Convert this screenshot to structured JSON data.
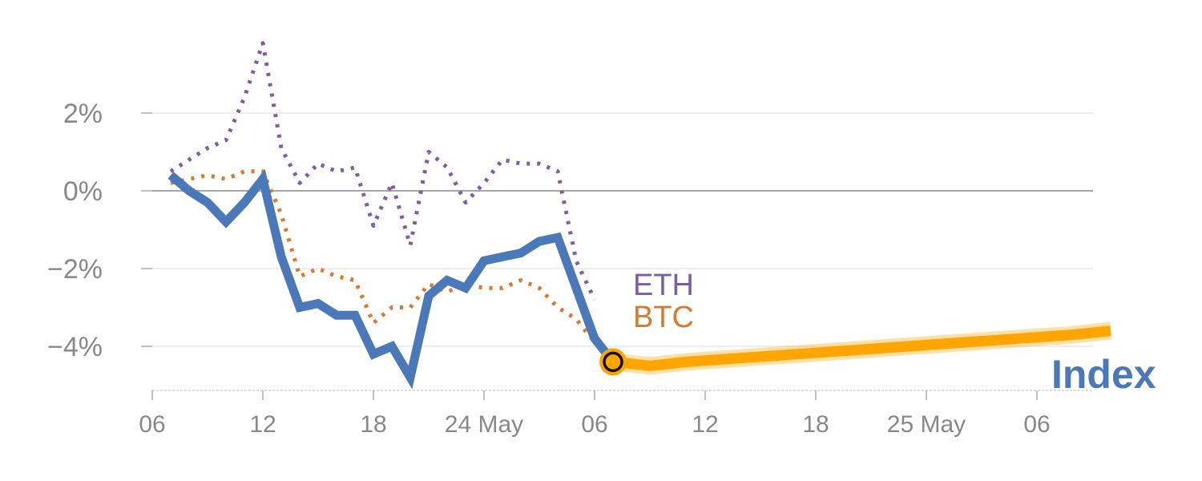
{
  "chart_data": {
    "type": "line",
    "x_axis": {
      "ticks": [
        {
          "label": "06",
          "day": 0
        },
        {
          "label": "12",
          "day": 6
        },
        {
          "label": "18",
          "day": 12
        },
        {
          "label": "24 May",
          "day": 18
        },
        {
          "label": "06",
          "day": 24
        },
        {
          "label": "12",
          "day": 30
        },
        {
          "label": "18",
          "day": 36
        },
        {
          "label": "25 May",
          "day": 42
        },
        {
          "label": "06",
          "day": 48
        }
      ]
    },
    "y_axis": {
      "unit": "%",
      "ylim": [
        -5.2,
        4.2
      ],
      "ticks": [
        {
          "label": "2%",
          "value": 2
        },
        {
          "label": "0%",
          "value": 0
        },
        {
          "label": "−2%",
          "value": -2
        },
        {
          "label": "−4%",
          "value": -4
        }
      ],
      "zero_line": true,
      "grid": true
    },
    "series": [
      {
        "name": "ETH",
        "style": "dotted",
        "color": "#7b5ea7",
        "points": [
          [
            1,
            0.5
          ],
          [
            2,
            0.8
          ],
          [
            3,
            1.1
          ],
          [
            4,
            1.3
          ],
          [
            5,
            2.4
          ],
          [
            6,
            3.8
          ],
          [
            7,
            1.1
          ],
          [
            8,
            0.2
          ],
          [
            9,
            0.7
          ],
          [
            10,
            0.5
          ],
          [
            11,
            0.6
          ],
          [
            12,
            -0.9
          ],
          [
            13,
            0.2
          ],
          [
            14,
            -1.4
          ],
          [
            15,
            1.0
          ],
          [
            16,
            0.6
          ],
          [
            17,
            -0.3
          ],
          [
            18,
            0.2
          ],
          [
            19,
            0.8
          ],
          [
            20,
            0.7
          ],
          [
            21,
            0.7
          ],
          [
            22,
            0.5
          ],
          [
            23,
            -1.8
          ],
          [
            24,
            -2.8
          ]
        ]
      },
      {
        "name": "BTC",
        "style": "dotted",
        "color": "#d9792e",
        "points": [
          [
            1,
            0.2
          ],
          [
            2,
            0.3
          ],
          [
            3,
            0.4
          ],
          [
            4,
            0.3
          ],
          [
            5,
            0.5
          ],
          [
            6,
            0.5
          ],
          [
            7,
            -0.6
          ],
          [
            8,
            -2.2
          ],
          [
            9,
            -2.0
          ],
          [
            10,
            -2.2
          ],
          [
            11,
            -2.3
          ],
          [
            12,
            -3.4
          ],
          [
            13,
            -3.0
          ],
          [
            14,
            -3.0
          ],
          [
            15,
            -2.4
          ],
          [
            16,
            -2.6
          ],
          [
            17,
            -2.4
          ],
          [
            18,
            -2.5
          ],
          [
            19,
            -2.5
          ],
          [
            20,
            -2.3
          ],
          [
            21,
            -2.5
          ],
          [
            22,
            -3.0
          ],
          [
            23,
            -3.3
          ],
          [
            24,
            -3.9
          ]
        ]
      },
      {
        "name": "Index",
        "style": "solid",
        "color": "#4a78b8",
        "points": [
          [
            1,
            0.4
          ],
          [
            2,
            0.0
          ],
          [
            3,
            -0.3
          ],
          [
            4,
            -0.8
          ],
          [
            5,
            -0.3
          ],
          [
            6,
            0.3
          ],
          [
            7,
            -1.7
          ],
          [
            8,
            -3.0
          ],
          [
            9,
            -2.9
          ],
          [
            10,
            -3.2
          ],
          [
            11,
            -3.2
          ],
          [
            12,
            -4.2
          ],
          [
            13,
            -4.0
          ],
          [
            14,
            -4.8
          ],
          [
            15,
            -2.7
          ],
          [
            16,
            -2.3
          ],
          [
            17,
            -2.5
          ],
          [
            18,
            -1.8
          ],
          [
            19,
            -1.7
          ],
          [
            20,
            -1.6
          ],
          [
            21,
            -1.3
          ],
          [
            22,
            -1.2
          ],
          [
            23,
            -2.5
          ],
          [
            24,
            -3.8
          ],
          [
            25,
            -4.4
          ]
        ]
      },
      {
        "name": "Index forecast",
        "style": "thick",
        "color": "#ffa500",
        "points": [
          [
            25,
            -4.4
          ],
          [
            27,
            -4.5
          ],
          [
            29,
            -4.4
          ],
          [
            32,
            -4.3
          ],
          [
            35,
            -4.2
          ],
          [
            38,
            -4.1
          ],
          [
            41,
            -4.0
          ],
          [
            44,
            -3.9
          ],
          [
            47,
            -3.8
          ],
          [
            50,
            -3.7
          ],
          [
            52,
            -3.6
          ]
        ]
      }
    ],
    "labels": {
      "eth": "ETH",
      "btc": "BTC",
      "index": "Index"
    },
    "marker": {
      "day": 25,
      "value": -4.4
    }
  }
}
